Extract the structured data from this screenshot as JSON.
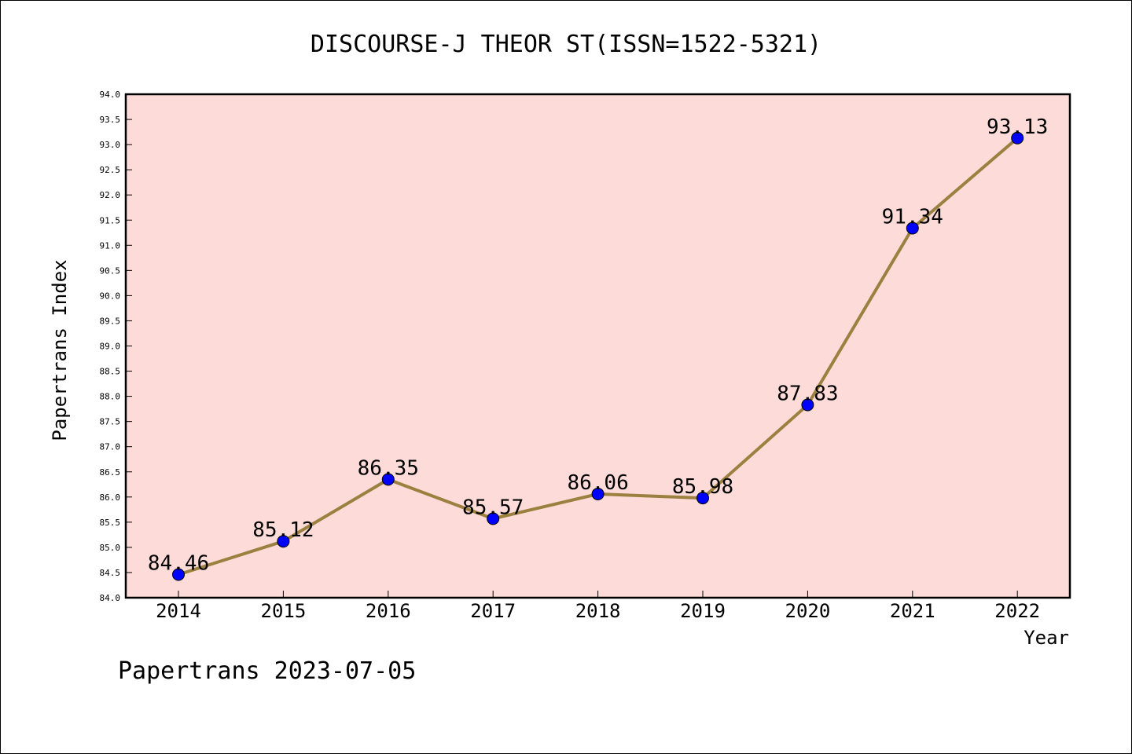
{
  "chart_data": {
    "type": "line",
    "title": "DISCOURSE-J THEOR ST(ISSN=1522-5321)",
    "xlabel": "Year",
    "ylabel": "Papertrans Index",
    "categories": [
      "2014",
      "2015",
      "2016",
      "2017",
      "2018",
      "2019",
      "2020",
      "2021",
      "2022"
    ],
    "series": [
      {
        "values": [
          84.46,
          85.12,
          86.35,
          85.57,
          86.06,
          85.98,
          87.83,
          91.34,
          93.13
        ]
      }
    ],
    "data_labels": [
      "84.46",
      "85.12",
      "86.35",
      "85.57",
      "86.06",
      "85.98",
      "87.83",
      "91.34",
      "93.13"
    ],
    "ylim": [
      84.0,
      94.0
    ],
    "yticks": [
      "84.0",
      "84.5",
      "85.0",
      "85.5",
      "86.0",
      "86.5",
      "87.0",
      "87.5",
      "88.0",
      "88.5",
      "89.0",
      "89.5",
      "90.0",
      "90.5",
      "91.0",
      "91.5",
      "92.0",
      "92.5",
      "93.0",
      "93.5",
      "94.0"
    ],
    "grid": false,
    "legend": "none",
    "colors": {
      "plot_background": "#fddbd8",
      "line": "#9b8040",
      "marker": "#0000ff"
    }
  },
  "footer": {
    "text": "Papertrans 2023-07-05"
  }
}
